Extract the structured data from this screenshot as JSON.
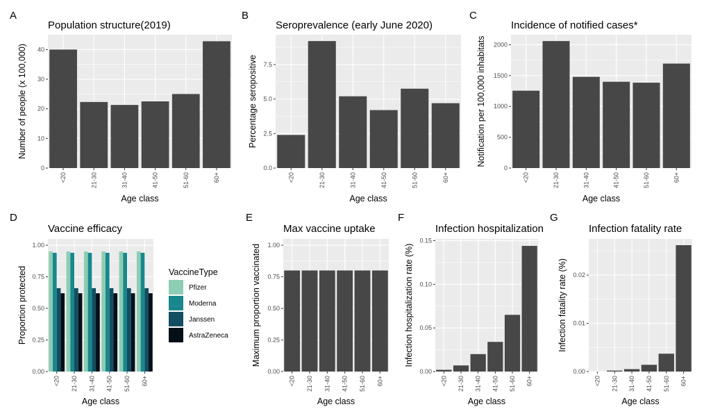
{
  "colors": {
    "panel_bg": "#ebebeb",
    "grid": "#ffffff",
    "bar": "#474747",
    "vaccines": [
      "#8ccdb4",
      "#19878c",
      "#124e62",
      "#050f18"
    ]
  },
  "chart_data": [
    {
      "panel": "A",
      "type": "bar",
      "title": "Population structure(2019)",
      "xlabel": "Age class",
      "ylabel": "Number of people (x 100,000)",
      "categories": [
        "<20",
        "21-30",
        "31-40",
        "41-50",
        "51-60",
        "60+"
      ],
      "values": [
        40,
        22.3,
        21.3,
        22.5,
        25,
        42.8
      ],
      "ylim": [
        0,
        45
      ],
      "yticks": [
        0,
        10,
        20,
        30,
        40
      ],
      "ytick_labels": [
        "0",
        "10",
        "20",
        "30",
        "40"
      ],
      "grid": true
    },
    {
      "panel": "B",
      "type": "bar",
      "title": "Seroprevalence (early June 2020)",
      "xlabel": "Age class",
      "ylabel": "Percentage seropositive",
      "categories": [
        "<20",
        "21-30",
        "31-40",
        "41-50",
        "51-60",
        "60+"
      ],
      "values": [
        2.4,
        9.2,
        5.2,
        4.2,
        5.75,
        4.7
      ],
      "ylim": [
        0,
        9.66
      ],
      "yticks": [
        0,
        2.5,
        5,
        7.5
      ],
      "ytick_labels": [
        "0.0",
        "2.5",
        "5.0",
        "7.5"
      ],
      "grid": true
    },
    {
      "panel": "C",
      "type": "bar",
      "title": "Incidence of notified cases*",
      "xlabel": "Age class",
      "ylabel": "Notification per 100,000 inhabitats",
      "categories": [
        "<20",
        "21-30",
        "31-40",
        "41-50",
        "51-60",
        "60+"
      ],
      "values": [
        1255,
        2060,
        1480,
        1400,
        1385,
        1695
      ],
      "ylim": [
        0,
        2163
      ],
      "yticks": [
        0,
        500,
        1000,
        1500,
        2000
      ],
      "ytick_labels": [
        "0",
        "500",
        "1000",
        "1500",
        "2000"
      ],
      "grid": true
    },
    {
      "panel": "D",
      "type": "bar",
      "title": "Vaccine efficacy",
      "xlabel": "Age class",
      "ylabel": "Proportion protected",
      "categories": [
        "<20",
        "21-30",
        "31-40",
        "41-50",
        "51-60",
        "60+"
      ],
      "series": [
        {
          "name": "Pfizer",
          "values": [
            0.95,
            0.95,
            0.95,
            0.95,
            0.95,
            0.95
          ]
        },
        {
          "name": "Moderna",
          "values": [
            0.94,
            0.94,
            0.94,
            0.94,
            0.94,
            0.94
          ]
        },
        {
          "name": "Janssen",
          "values": [
            0.66,
            0.66,
            0.66,
            0.66,
            0.66,
            0.66
          ]
        },
        {
          "name": "AstraZeneca",
          "values": [
            0.62,
            0.62,
            0.62,
            0.62,
            0.62,
            0.62
          ]
        }
      ],
      "legend_title": "VaccineType",
      "legend_position": "right",
      "ylim": [
        0,
        1.05
      ],
      "yticks": [
        0,
        0.25,
        0.5,
        0.75,
        1
      ],
      "ytick_labels": [
        "0.00",
        "0.25",
        "0.50",
        "0.75",
        "1.00"
      ],
      "grid": true
    },
    {
      "panel": "E",
      "type": "bar",
      "title": "Max vaccine uptake",
      "xlabel": "Age class",
      "ylabel": "Maximum proportion vaccinated",
      "categories": [
        "<20",
        "21-30",
        "31-40",
        "41-50",
        "51-60",
        "60+"
      ],
      "values": [
        0.8,
        0.8,
        0.8,
        0.8,
        0.8,
        0.8
      ],
      "ylim": [
        0,
        1.05
      ],
      "yticks": [
        0,
        0.25,
        0.5,
        0.75,
        1
      ],
      "ytick_labels": [
        "0.00",
        "0.25",
        "0.50",
        "0.75",
        "1.00"
      ],
      "grid": true
    },
    {
      "panel": "F",
      "type": "bar",
      "title": "Infection hospitalization",
      "xlabel": "Age class",
      "ylabel": "Infection hospitalization rate (%)",
      "categories": [
        "<20",
        "21-30",
        "31-40",
        "41-50",
        "51-60",
        "60+"
      ],
      "values": [
        0.002,
        0.007,
        0.02,
        0.034,
        0.065,
        0.144
      ],
      "ylim": [
        0,
        0.152
      ],
      "yticks": [
        0,
        0.05,
        0.1,
        0.15
      ],
      "ytick_labels": [
        "0.00",
        "0.05",
        "0.10",
        "0.15"
      ],
      "grid": true
    },
    {
      "panel": "G",
      "type": "bar",
      "title": "Infection fatality rate",
      "xlabel": "Age class",
      "ylabel": "Infection fatality rate (%)",
      "categories": [
        "<20",
        "21-30",
        "31-40",
        "41-50",
        "51-60",
        "60+"
      ],
      "values": [
        0,
        0.0002,
        0.0005,
        0.0014,
        0.0037,
        0.0262
      ],
      "ylim": [
        0,
        0.0275
      ],
      "yticks": [
        0,
        0.01,
        0.02
      ],
      "ytick_labels": [
        "0.00",
        "0.01",
        "0.02"
      ],
      "grid": true
    }
  ]
}
